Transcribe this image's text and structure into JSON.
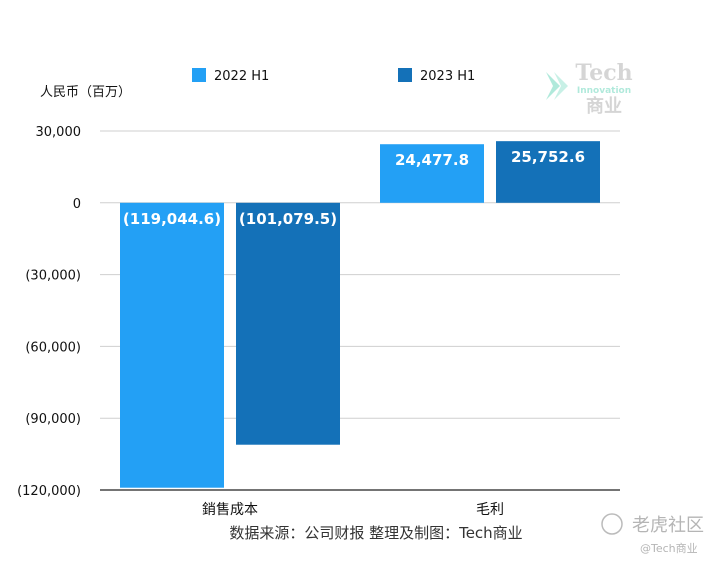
{
  "chart_data": {
    "type": "bar",
    "categories": [
      "銷售成本",
      "毛利"
    ],
    "series": [
      {
        "name": "2022 H1",
        "values": [
          -119044.6,
          24477.8
        ],
        "labels": [
          "(119,044.6)",
          "24,477.8"
        ],
        "color": "#23a0f5"
      },
      {
        "name": "2023 H1",
        "values": [
          -101079.5,
          25752.6
        ],
        "labels": [
          "(101,079.5)",
          "25,752.6"
        ],
        "color": "#1471b8"
      }
    ],
    "ylabel": "人民币（百万）",
    "ylim": [
      -120000,
      30000
    ],
    "yticks": [
      30000,
      0,
      -30000,
      -60000,
      -90000,
      -120000
    ],
    "ytick_labels": [
      "30,000",
      "0",
      "(30,000)",
      "(60,000)",
      "(90,000)",
      "(120,000)"
    ],
    "grid": true,
    "legend_position": "top"
  },
  "source_note": "数据来源：公司财报 整理及制图：Tech商业",
  "logo": {
    "title": "Tech",
    "sub": "Innovation",
    "cn": "商业"
  },
  "watermark": {
    "main": "老虎社区",
    "sub": "@Tech商业"
  }
}
